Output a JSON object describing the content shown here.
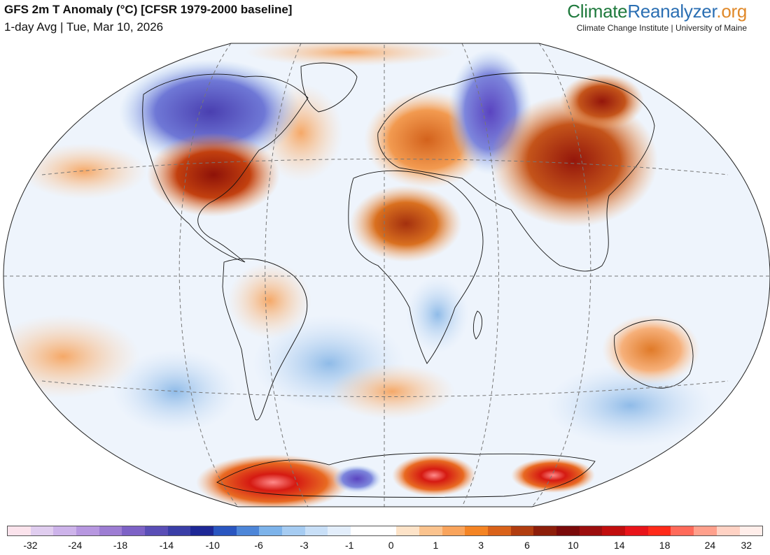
{
  "header": {
    "title": "GFS 2m T Anomaly (°C) [CFSR 1979-2000 baseline]",
    "subtitle": "1-day Avg | Tue, Mar 10, 2026"
  },
  "brand": {
    "part1": "Climate",
    "part2": "Reanalyzer",
    "part3": ".org",
    "credit": "Climate Change Institute | University of Maine",
    "colors": {
      "climate": "#1f7a3d",
      "reanalyzer": "#2b6fb3",
      "org": "#e0892a"
    }
  },
  "map": {
    "projection": "Winkel-Tripel-like world map",
    "regions": [
      {
        "name": "north-america-cold-anomaly",
        "color": "#5a54b8"
      },
      {
        "name": "eastern-us-warm-anomaly",
        "color": "#b3200f"
      },
      {
        "name": "siberia-cold-anomaly",
        "color": "#6b5cc7"
      },
      {
        "name": "east-asia-warm-anomaly",
        "color": "#b8320f"
      },
      {
        "name": "sahara-warm-anomaly",
        "color": "#c8501a"
      },
      {
        "name": "europe-warm-anomaly",
        "color": "#e2782a"
      },
      {
        "name": "australia-warm-anomaly",
        "color": "#f0a05a"
      },
      {
        "name": "antarctica-warm-anomaly",
        "color": "#c81e12"
      },
      {
        "name": "southern-africa-cool-anomaly",
        "color": "#8fbde6"
      },
      {
        "name": "south-america-mixed",
        "color": "#f4b07a"
      }
    ]
  },
  "legend": {
    "colors": [
      "#fbe3ec",
      "#e0cdef",
      "#cdb3ea",
      "#b797e0",
      "#9d7dd3",
      "#7d62c6",
      "#5a4eb6",
      "#3a3ea7",
      "#1e2896",
      "#2a56c0",
      "#4d86d8",
      "#7db3ea",
      "#a6ccf2",
      "#c8dff7",
      "#e3eefb",
      "#ffffff",
      "#ffffff",
      "#fde3c8",
      "#fbc38e",
      "#f9a45c",
      "#f48424",
      "#d9621a",
      "#b13d10",
      "#8d1e0a",
      "#7a0a0a",
      "#9c0e0e",
      "#c10e0e",
      "#e8141a",
      "#ff2a1a",
      "#ff6a5a",
      "#ffa08c",
      "#ffd2c4",
      "#ffeeea"
    ],
    "ticks": [
      {
        "label": "-32",
        "pos": 0.031
      },
      {
        "label": "-24",
        "pos": 0.09
      },
      {
        "label": "-18",
        "pos": 0.15
      },
      {
        "label": "-14",
        "pos": 0.211
      },
      {
        "label": "-10",
        "pos": 0.272
      },
      {
        "label": "-6",
        "pos": 0.333
      },
      {
        "label": "-3",
        "pos": 0.393
      },
      {
        "label": "-1",
        "pos": 0.453
      },
      {
        "label": "0",
        "pos": 0.508
      },
      {
        "label": "1",
        "pos": 0.567
      },
      {
        "label": "3",
        "pos": 0.627
      },
      {
        "label": "6",
        "pos": 0.688
      },
      {
        "label": "10",
        "pos": 0.749
      },
      {
        "label": "14",
        "pos": 0.81
      },
      {
        "label": "18",
        "pos": 0.87
      },
      {
        "label": "24",
        "pos": 0.93
      },
      {
        "label": "32",
        "pos": 0.978
      }
    ]
  }
}
